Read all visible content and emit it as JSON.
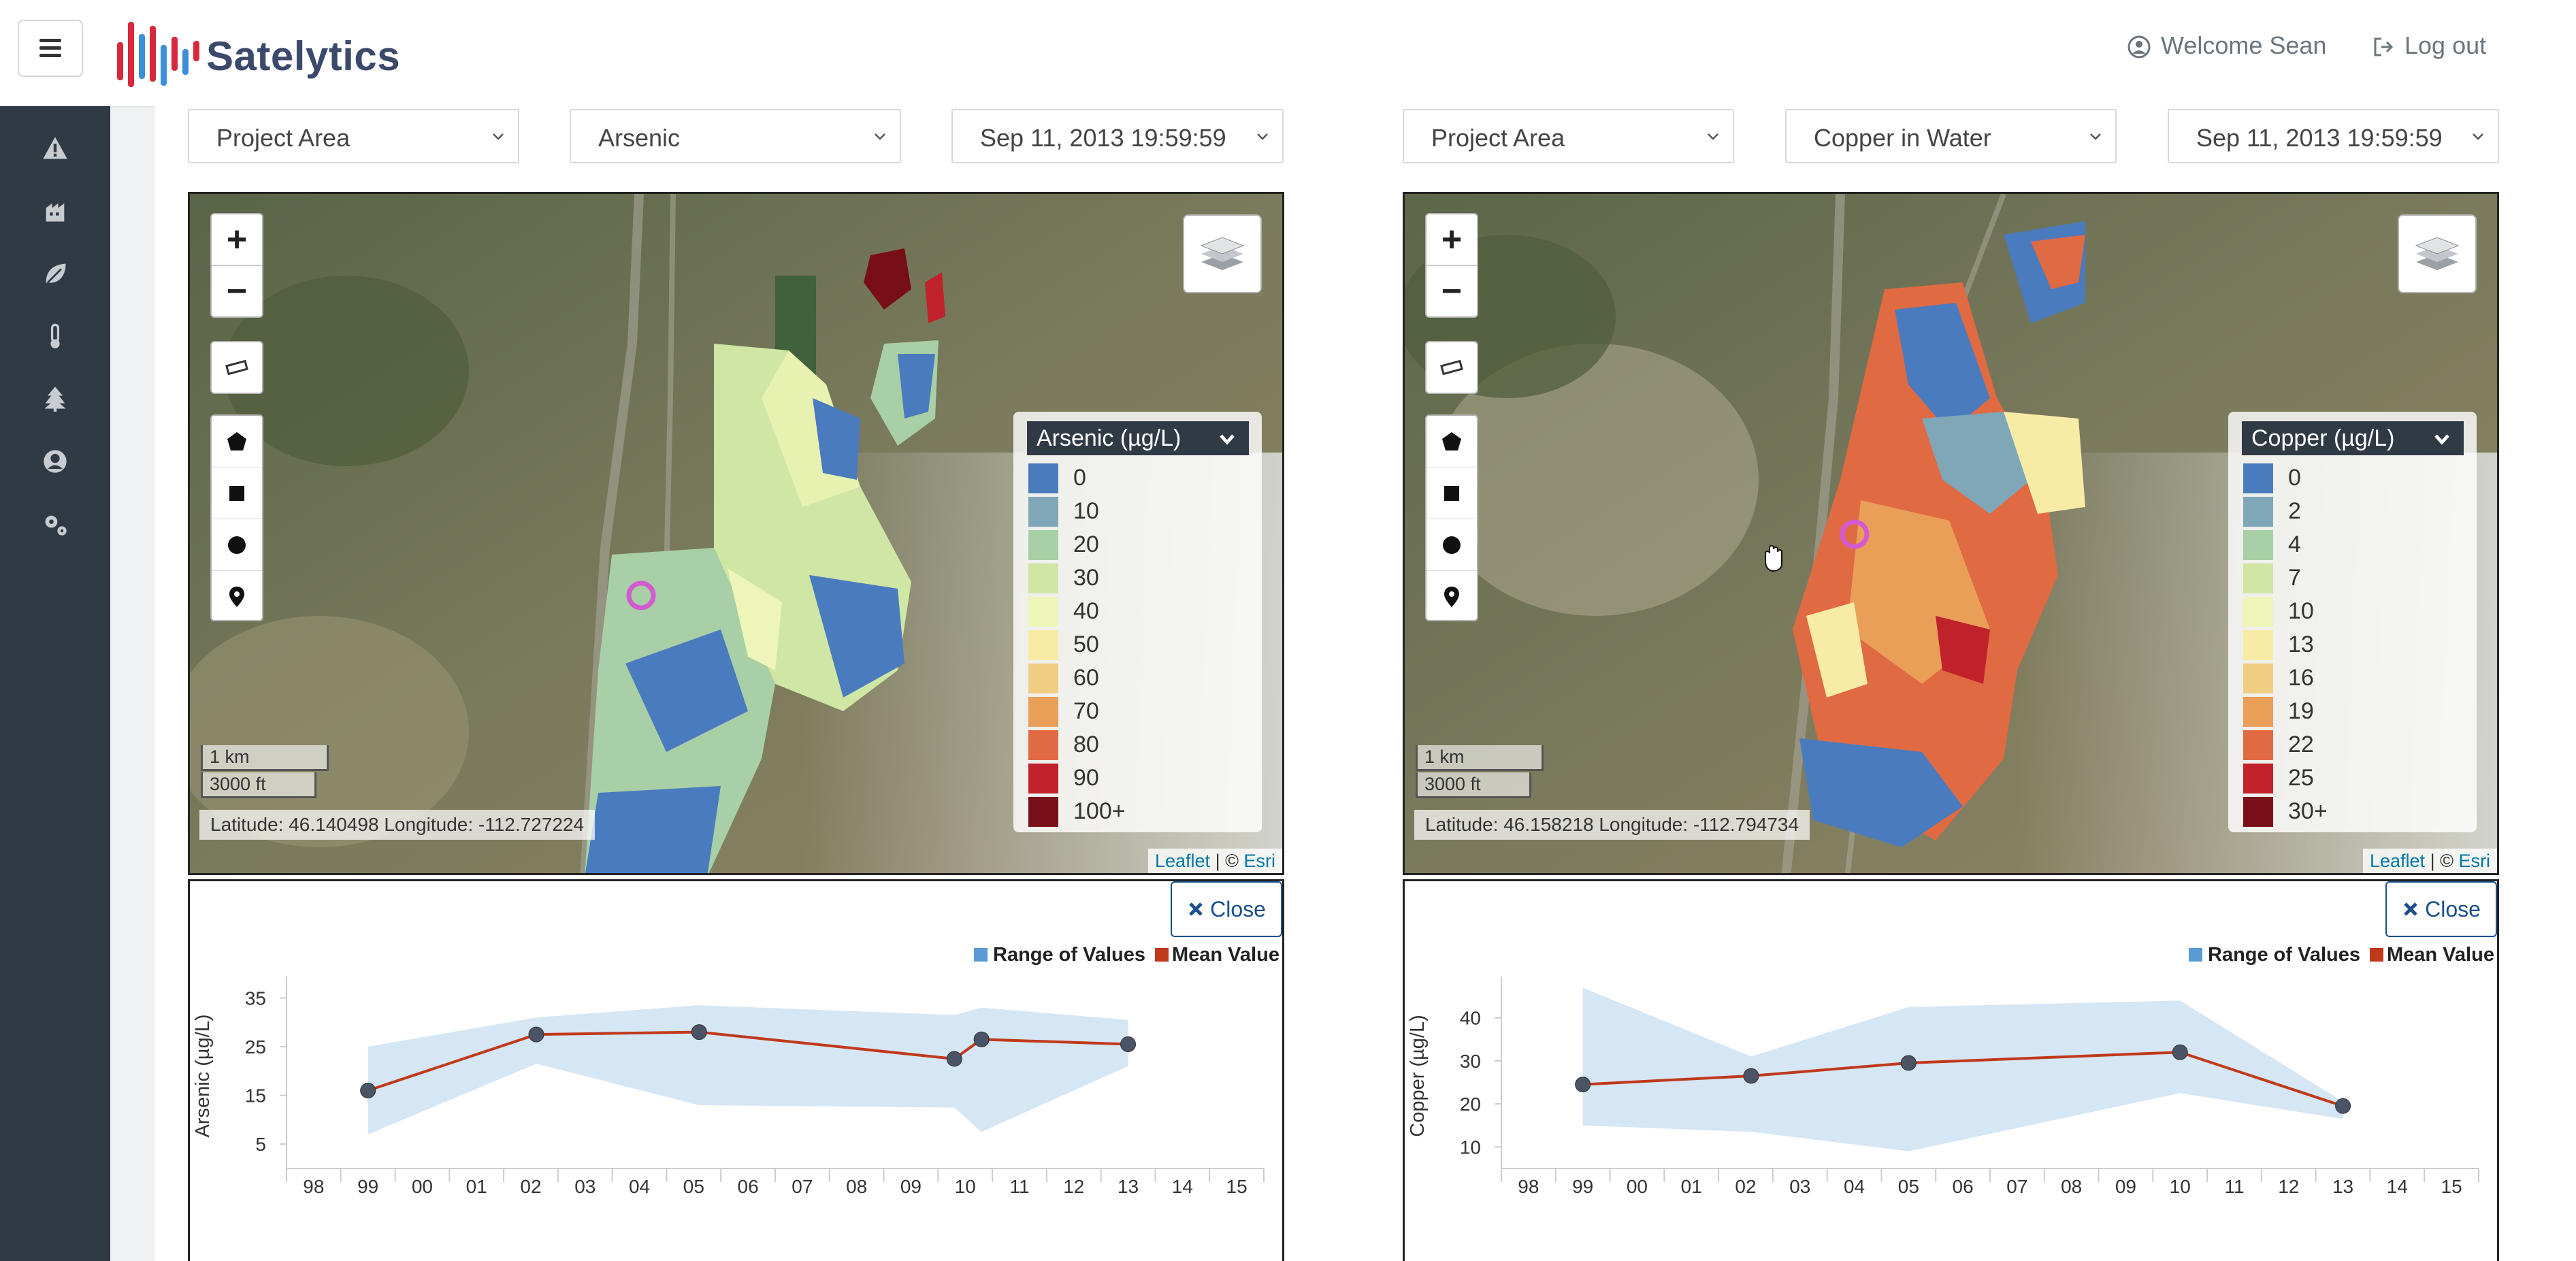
{
  "app": {
    "brand": "Satelytics",
    "welcome": "Welcome Sean",
    "logout": "Log out"
  },
  "sidebar": {
    "items": [
      {
        "icon": "warning-icon"
      },
      {
        "icon": "factory-icon"
      },
      {
        "icon": "leaf-icon"
      },
      {
        "icon": "thermometer-icon"
      },
      {
        "icon": "tree-icon"
      },
      {
        "icon": "user-circle-icon"
      },
      {
        "icon": "settings-gears-icon"
      }
    ]
  },
  "left": {
    "area": "Project Area",
    "parameter": "Arsenic",
    "date": "Sep 11, 2013 19:59:59",
    "legend_title": "Arsenic (µg/L)",
    "legend": [
      {
        "label": "0",
        "color": "#4a7bbf"
      },
      {
        "label": "10",
        "color": "#7fa7b8"
      },
      {
        "label": "20",
        "color": "#a8cfa6"
      },
      {
        "label": "30",
        "color": "#cfe6a5"
      },
      {
        "label": "40",
        "color": "#eef5b8"
      },
      {
        "label": "50",
        "color": "#f7eba6"
      },
      {
        "label": "60",
        "color": "#f1cd82"
      },
      {
        "label": "70",
        "color": "#ea9f59"
      },
      {
        "label": "80",
        "color": "#e06a42"
      },
      {
        "label": "90",
        "color": "#c0222b"
      },
      {
        "label": "100+",
        "color": "#780f16"
      }
    ],
    "scale_km": "1 km",
    "scale_ft": "3000 ft",
    "coords": "Latitude: 46.140498 Longitude: -112.727224",
    "attrib_leaflet": "Leaflet",
    "attrib_sep": "| © ",
    "attrib_esri": "Esri",
    "close": "Close"
  },
  "right": {
    "area": "Project Area",
    "parameter": "Copper in Water",
    "date": "Sep 11, 2013 19:59:59",
    "legend_title": "Copper (µg/L)",
    "legend": [
      {
        "label": "0",
        "color": "#4a7bbf"
      },
      {
        "label": "2",
        "color": "#7fa7b8"
      },
      {
        "label": "4",
        "color": "#a8cfa6"
      },
      {
        "label": "7",
        "color": "#cfe6a5"
      },
      {
        "label": "10",
        "color": "#eef5b8"
      },
      {
        "label": "13",
        "color": "#f7eba6"
      },
      {
        "label": "16",
        "color": "#f1cd82"
      },
      {
        "label": "19",
        "color": "#ea9f59"
      },
      {
        "label": "22",
        "color": "#e06a42"
      },
      {
        "label": "25",
        "color": "#c0222b"
      },
      {
        "label": "30+",
        "color": "#780f16"
      }
    ],
    "scale_km": "1 km",
    "scale_ft": "3000 ft",
    "coords": "Latitude: 46.158218 Longitude: -112.794734",
    "attrib_leaflet": "Leaflet",
    "attrib_sep": "| © ",
    "attrib_esri": "Esri",
    "close": "Close"
  },
  "chart_data": [
    {
      "type": "line",
      "ylabel": "Arsenic (µg/L)",
      "legend": [
        "Range of Values",
        "Mean Value"
      ],
      "legend_placement": "top-right",
      "legend_colors": [
        "#5b9bd5",
        "#c0391b"
      ],
      "range_color": "#d5e6f5",
      "line_color": "#c0391b",
      "x_ticks": [
        "98",
        "99",
        "00",
        "01",
        "02",
        "03",
        "04",
        "05",
        "06",
        "07",
        "08",
        "09",
        "10",
        "11",
        "12",
        "13",
        "14",
        "15"
      ],
      "y_ticks": [
        5,
        15,
        25,
        35
      ],
      "ylim": [
        0,
        38
      ],
      "mean_points": [
        {
          "x": 1999.0,
          "y": 16
        },
        {
          "x": 2002.1,
          "y": 27.5
        },
        {
          "x": 2005.1,
          "y": 28
        },
        {
          "x": 2009.8,
          "y": 22.5
        },
        {
          "x": 2010.3,
          "y": 26.5
        },
        {
          "x": 2013.0,
          "y": 25.5
        }
      ],
      "range_upper": [
        {
          "x": 1999.0,
          "y": 25
        },
        {
          "x": 2002.1,
          "y": 31
        },
        {
          "x": 2005.1,
          "y": 33.5
        },
        {
          "x": 2009.8,
          "y": 31.5
        },
        {
          "x": 2010.3,
          "y": 33
        },
        {
          "x": 2013.0,
          "y": 30.5
        }
      ],
      "range_lower": [
        {
          "x": 1999.0,
          "y": 7
        },
        {
          "x": 2002.1,
          "y": 21.5
        },
        {
          "x": 2005.1,
          "y": 13
        },
        {
          "x": 2009.8,
          "y": 12.5
        },
        {
          "x": 2010.3,
          "y": 7.5
        },
        {
          "x": 2013.0,
          "y": 21
        }
      ]
    },
    {
      "type": "line",
      "ylabel": "Copper (µg/L)",
      "legend": [
        "Range of Values",
        "Mean Value"
      ],
      "legend_placement": "top-right",
      "legend_colors": [
        "#5b9bd5",
        "#c0391b"
      ],
      "range_color": "#d5e6f5",
      "line_color": "#c0391b",
      "x_ticks": [
        "98",
        "99",
        "00",
        "01",
        "02",
        "03",
        "04",
        "05",
        "06",
        "07",
        "08",
        "09",
        "10",
        "11",
        "12",
        "13",
        "14",
        "15"
      ],
      "y_ticks": [
        10,
        20,
        30,
        40
      ],
      "ylim": [
        5,
        48
      ],
      "mean_points": [
        {
          "x": 1999.0,
          "y": 24.5
        },
        {
          "x": 2002.1,
          "y": 26.5
        },
        {
          "x": 2005.0,
          "y": 29.5
        },
        {
          "x": 2010.0,
          "y": 32
        },
        {
          "x": 2013.0,
          "y": 19.5
        }
      ],
      "range_upper": [
        {
          "x": 1999.0,
          "y": 47
        },
        {
          "x": 2002.1,
          "y": 31
        },
        {
          "x": 2005.0,
          "y": 42.5
        },
        {
          "x": 2010.0,
          "y": 44
        },
        {
          "x": 2013.0,
          "y": 20.5
        }
      ],
      "range_lower": [
        {
          "x": 1999.0,
          "y": 15
        },
        {
          "x": 2002.1,
          "y": 13.5
        },
        {
          "x": 2005.0,
          "y": 9
        },
        {
          "x": 2010.0,
          "y": 22.5
        },
        {
          "x": 2013.0,
          "y": 16.5
        }
      ]
    }
  ]
}
